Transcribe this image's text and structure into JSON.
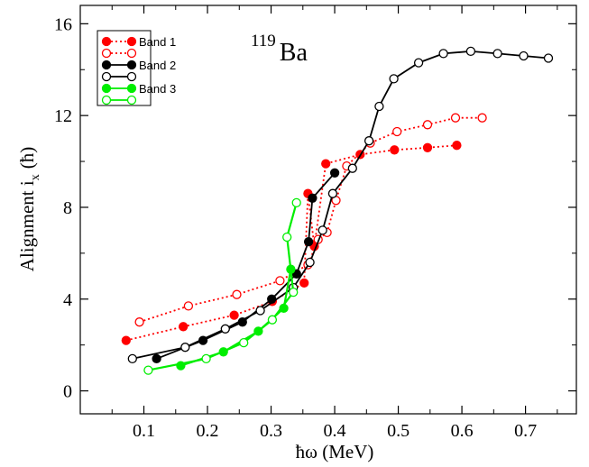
{
  "chart_data": {
    "type": "line",
    "title": "",
    "annotation": {
      "sup": "119",
      "base": "Ba"
    },
    "xlabel": "ħω (MeV)",
    "ylabel": {
      "main": "Alignment  i",
      "sub": "x",
      "unit": "(ħ)"
    },
    "xlim": [
      0.0,
      0.78
    ],
    "ylim": [
      -1.0,
      16.8
    ],
    "xticks": [
      0.1,
      0.2,
      0.3,
      0.4,
      0.5,
      0.6,
      0.7
    ],
    "xtick_labels": [
      "0.1",
      "0.2",
      "0.3",
      "0.4",
      "0.5",
      "0.6",
      "0.7"
    ],
    "yticks": [
      0,
      4,
      8,
      12,
      16
    ],
    "ytick_labels": [
      "0",
      "4",
      "8",
      "12",
      "16"
    ],
    "grid": false,
    "legend_position": "top-left",
    "colors": {
      "red": "#ff0000",
      "black": "#000000",
      "green": "#00ee00"
    },
    "series": [
      {
        "name": "Band 1",
        "color": "#ff0000",
        "marker": "filled",
        "dash": "dotted",
        "x": [
          0.072,
          0.162,
          0.242,
          0.302,
          0.352,
          0.358,
          0.368,
          0.386,
          0.44,
          0.494,
          0.546,
          0.592
        ],
        "y": [
          2.2,
          2.8,
          3.3,
          3.9,
          4.7,
          8.6,
          6.3,
          9.9,
          10.3,
          10.5,
          10.6,
          10.7
        ]
      },
      {
        "name": "",
        "color": "#ff0000",
        "marker": "open",
        "dash": "dotted",
        "x": [
          0.093,
          0.17,
          0.246,
          0.314,
          0.358,
          0.374,
          0.388,
          0.402,
          0.419,
          0.456,
          0.498,
          0.546,
          0.59,
          0.632
        ],
        "y": [
          3.0,
          3.7,
          4.2,
          4.8,
          5.5,
          6.6,
          6.9,
          8.3,
          9.8,
          10.8,
          11.3,
          11.6,
          11.9,
          11.9
        ]
      },
      {
        "name": "Band 2",
        "color": "#000000",
        "marker": "filled",
        "dash": "solid",
        "x": [
          0.12,
          0.193,
          0.255,
          0.301,
          0.34,
          0.359,
          0.365,
          0.4
        ],
        "y": [
          1.4,
          2.2,
          3.0,
          4.0,
          5.1,
          6.5,
          8.4,
          9.5
        ]
      },
      {
        "name": "",
        "color": "#000000",
        "marker": "open",
        "dash": "solid",
        "x": [
          0.082,
          0.165,
          0.228,
          0.283,
          0.335,
          0.361,
          0.381,
          0.397,
          0.428,
          0.454,
          0.47,
          0.493,
          0.532,
          0.571,
          0.614,
          0.656,
          0.697,
          0.736
        ],
        "y": [
          1.4,
          1.9,
          2.7,
          3.5,
          4.5,
          5.6,
          7.0,
          8.6,
          9.7,
          10.9,
          12.4,
          13.6,
          14.3,
          14.7,
          14.8,
          14.7,
          14.6,
          14.5
        ]
      },
      {
        "name": "Band 3",
        "color": "#00ee00",
        "marker": "filled",
        "dash": "solid",
        "x": [
          0.158,
          0.225,
          0.28,
          0.32,
          0.331
        ],
        "y": [
          1.1,
          1.7,
          2.6,
          3.6,
          5.3
        ]
      },
      {
        "name": "",
        "color": "#00ee00",
        "marker": "open",
        "dash": "solid",
        "x": [
          0.107,
          0.198,
          0.257,
          0.302,
          0.335,
          0.325,
          0.34
        ],
        "y": [
          0.9,
          1.4,
          2.1,
          3.1,
          4.3,
          6.7,
          8.2
        ]
      }
    ]
  }
}
